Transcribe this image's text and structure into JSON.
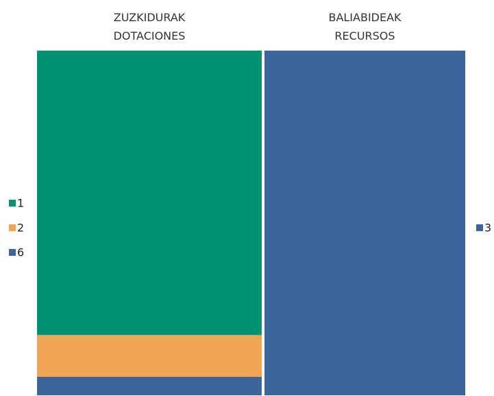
{
  "chart_data": {
    "type": "bar",
    "stacked": true,
    "categories": [
      "ZUZKIDURAK DOTACIONES",
      "BALIABIDEAK RECURSOS"
    ],
    "series": [
      {
        "name": "1",
        "color": "#009270",
        "values": [
          82.5,
          null
        ]
      },
      {
        "name": "2",
        "color": "#f0a554",
        "values": [
          12.1,
          null
        ]
      },
      {
        "name": "6",
        "color": "#3c6699",
        "values": [
          5.4,
          null
        ]
      },
      {
        "name": "3",
        "color": "#3c6699",
        "values": [
          null,
          100
        ]
      }
    ],
    "ylim": [
      0,
      100
    ]
  }
}
